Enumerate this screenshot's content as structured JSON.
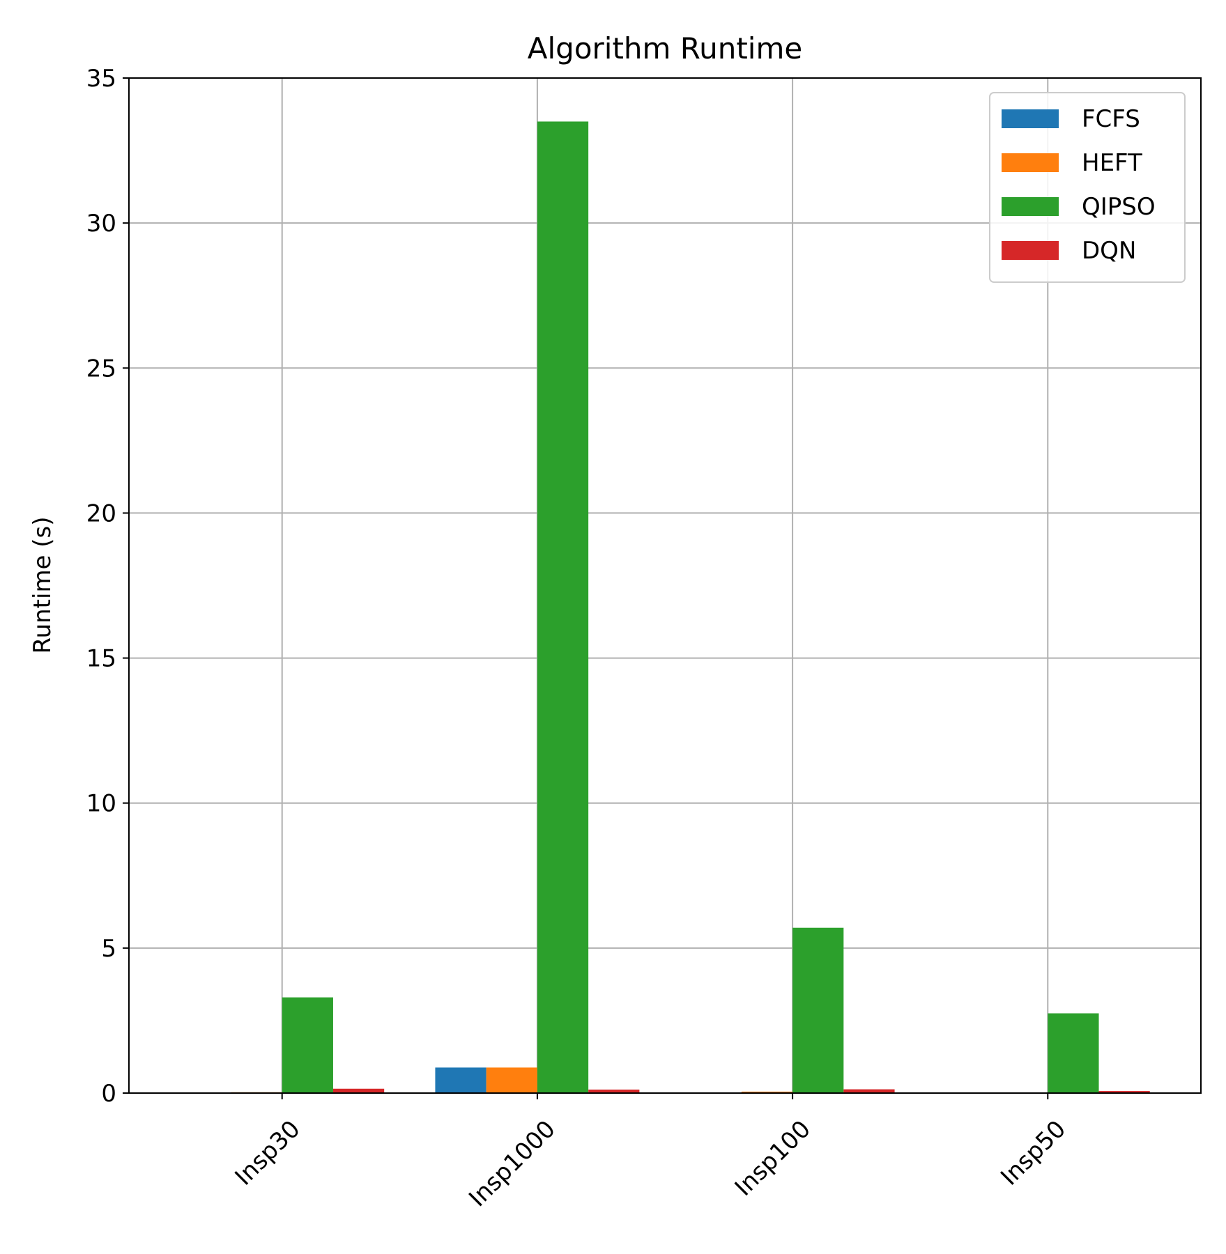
{
  "chart_data": {
    "type": "bar",
    "title": "Algorithm Runtime",
    "xlabel": "",
    "ylabel": "Runtime (s)",
    "categories": [
      "Insp30",
      "Insp1000",
      "Insp100",
      "Insp50"
    ],
    "series": [
      {
        "name": "FCFS",
        "color": "#1f77b4",
        "values": [
          0.01,
          0.88,
          0.02,
          0.01
        ]
      },
      {
        "name": "HEFT",
        "color": "#ff7f0e",
        "values": [
          0.03,
          0.88,
          0.05,
          0.02
        ]
      },
      {
        "name": "QIPSO",
        "color": "#2ca02c",
        "values": [
          3.3,
          33.5,
          5.7,
          2.75
        ]
      },
      {
        "name": "DQN",
        "color": "#d62728",
        "values": [
          0.15,
          0.12,
          0.13,
          0.07
        ]
      }
    ],
    "ylim": [
      0,
      35
    ],
    "yticks": [
      0,
      5,
      10,
      15,
      20,
      25,
      30,
      35
    ],
    "grid": true,
    "legend_position": "top-right",
    "xtick_rotation": 45
  }
}
